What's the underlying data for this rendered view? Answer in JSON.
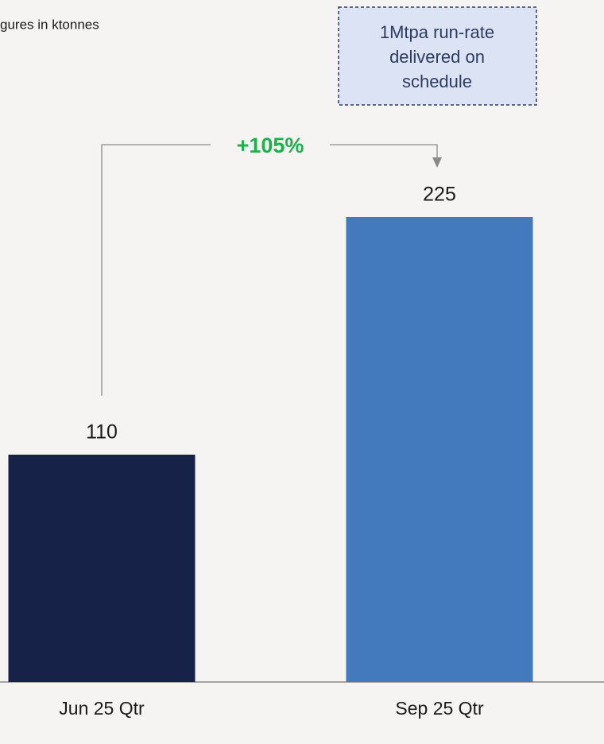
{
  "chart_data": {
    "type": "bar",
    "subtitle": "gures in ktonnes",
    "categories": [
      "Jun 25 Qtr",
      "Sep 25 Qtr"
    ],
    "values": [
      110,
      225
    ],
    "colors": [
      "#172249",
      "#4379bd"
    ],
    "ylim": [
      0,
      330
    ],
    "change_label": "+105%",
    "annotation": [
      "1Mtpa run-rate",
      "delivered on",
      "schedule"
    ]
  }
}
